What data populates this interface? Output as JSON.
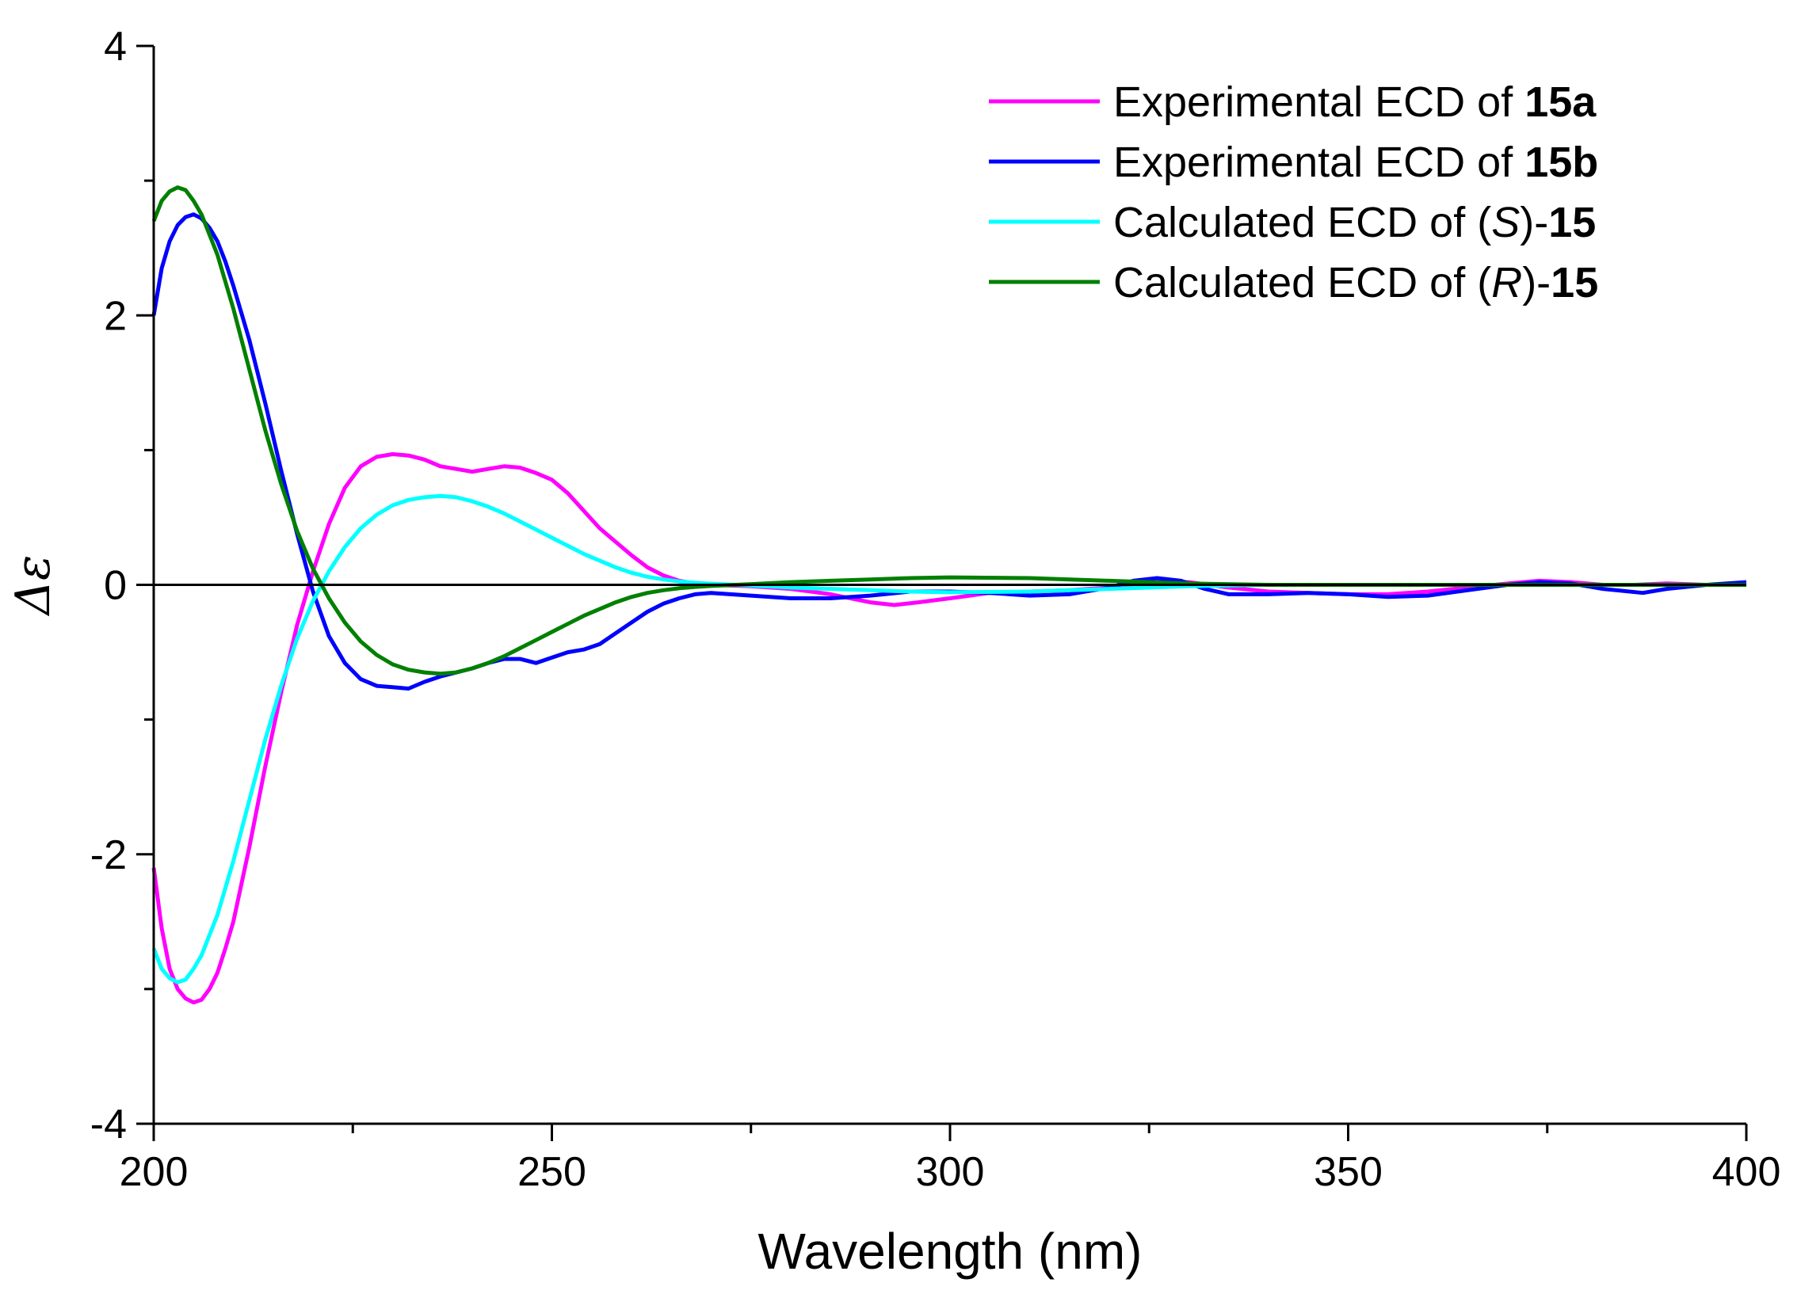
{
  "chart_data": {
    "type": "line",
    "xlabel": "Wavelength (nm)",
    "ylabel": "Δε",
    "xlim": [
      200,
      400
    ],
    "ylim": [
      -4,
      4
    ],
    "x_ticks": [
      "200",
      "250",
      "300",
      "350",
      "400"
    ],
    "y_ticks": [
      "4",
      "2",
      "0",
      "-2",
      "-4"
    ],
    "legend": [
      {
        "parts": [
          "Experimental ECD of ",
          "15a"
        ]
      },
      {
        "parts": [
          "Experimental ECD of ",
          "15b"
        ]
      },
      {
        "parts": [
          "Calculated ECD of (",
          "S",
          ")-",
          "15"
        ]
      },
      {
        "parts": [
          "Calculated ECD of (",
          "R",
          ")-",
          "15"
        ]
      }
    ],
    "series": [
      {
        "name": "Experimental ECD of 15a",
        "color": "#ff00ff",
        "x": [
          200,
          201,
          202,
          203,
          204,
          205,
          206,
          207,
          208,
          209,
          210,
          212,
          214,
          216,
          218,
          220,
          222,
          224,
          226,
          228,
          230,
          232,
          234,
          236,
          238,
          240,
          242,
          244,
          246,
          248,
          250,
          252,
          254,
          256,
          258,
          260,
          262,
          264,
          266,
          268,
          270,
          275,
          280,
          285,
          290,
          293,
          296,
          300,
          305,
          310,
          315,
          320,
          325,
          330,
          335,
          340,
          345,
          350,
          355,
          360,
          365,
          370,
          374,
          378,
          382,
          386,
          390,
          395,
          400
        ],
        "y": [
          -2.1,
          -2.55,
          -2.85,
          -3.0,
          -3.07,
          -3.1,
          -3.08,
          -3.0,
          -2.88,
          -2.7,
          -2.5,
          -1.95,
          -1.35,
          -0.8,
          -0.3,
          0.1,
          0.45,
          0.72,
          0.88,
          0.95,
          0.97,
          0.96,
          0.93,
          0.88,
          0.86,
          0.84,
          0.86,
          0.88,
          0.87,
          0.83,
          0.78,
          0.68,
          0.55,
          0.42,
          0.32,
          0.22,
          0.13,
          0.07,
          0.03,
          0.01,
          0.0,
          -0.01,
          -0.03,
          -0.07,
          -0.13,
          -0.15,
          -0.13,
          -0.1,
          -0.06,
          -0.05,
          -0.04,
          -0.02,
          0.02,
          0.02,
          -0.02,
          -0.05,
          -0.06,
          -0.07,
          -0.07,
          -0.05,
          -0.02,
          0.01,
          0.03,
          0.02,
          0.0,
          0.0,
          0.01,
          0.0,
          0.0
        ]
      },
      {
        "name": "Experimental ECD of 15b",
        "color": "#0000ff",
        "x": [
          200,
          201,
          202,
          203,
          204,
          205,
          206,
          207,
          208,
          209,
          210,
          212,
          214,
          216,
          218,
          220,
          222,
          224,
          226,
          228,
          230,
          232,
          234,
          236,
          238,
          240,
          242,
          244,
          246,
          248,
          250,
          252,
          254,
          256,
          258,
          260,
          262,
          264,
          266,
          268,
          270,
          275,
          280,
          285,
          290,
          295,
          300,
          305,
          310,
          315,
          320,
          323,
          326,
          329,
          332,
          335,
          340,
          345,
          350,
          355,
          360,
          365,
          370,
          374,
          378,
          382,
          387,
          390,
          395,
          400
        ],
        "y": [
          2.0,
          2.35,
          2.55,
          2.67,
          2.73,
          2.75,
          2.72,
          2.65,
          2.55,
          2.4,
          2.22,
          1.82,
          1.35,
          0.85,
          0.38,
          -0.05,
          -0.38,
          -0.58,
          -0.7,
          -0.75,
          -0.76,
          -0.77,
          -0.72,
          -0.68,
          -0.65,
          -0.62,
          -0.58,
          -0.55,
          -0.55,
          -0.58,
          -0.54,
          -0.5,
          -0.48,
          -0.44,
          -0.36,
          -0.28,
          -0.2,
          -0.14,
          -0.1,
          -0.07,
          -0.06,
          -0.08,
          -0.1,
          -0.1,
          -0.08,
          -0.05,
          -0.05,
          -0.06,
          -0.08,
          -0.07,
          -0.02,
          0.03,
          0.05,
          0.03,
          -0.03,
          -0.07,
          -0.07,
          -0.06,
          -0.07,
          -0.09,
          -0.08,
          -0.04,
          0.0,
          0.02,
          0.01,
          -0.03,
          -0.06,
          -0.03,
          0.0,
          0.02
        ]
      },
      {
        "name": "Calculated ECD of (S)-15",
        "color": "#00ffff",
        "x": [
          200,
          201,
          202,
          203,
          204,
          205,
          206,
          208,
          210,
          212,
          214,
          216,
          218,
          220,
          222,
          224,
          226,
          228,
          230,
          232,
          234,
          236,
          238,
          240,
          242,
          244,
          246,
          248,
          250,
          252,
          254,
          256,
          258,
          260,
          262,
          264,
          266,
          268,
          270,
          275,
          280,
          285,
          290,
          295,
          300,
          310,
          320,
          330,
          340,
          400
        ],
        "y": [
          -2.7,
          -2.85,
          -2.92,
          -2.95,
          -2.93,
          -2.85,
          -2.75,
          -2.45,
          -2.05,
          -1.6,
          -1.15,
          -0.75,
          -0.4,
          -0.12,
          0.1,
          0.28,
          0.42,
          0.52,
          0.59,
          0.63,
          0.65,
          0.66,
          0.65,
          0.62,
          0.58,
          0.53,
          0.47,
          0.41,
          0.35,
          0.29,
          0.23,
          0.18,
          0.13,
          0.09,
          0.06,
          0.04,
          0.025,
          0.015,
          0.008,
          -0.005,
          -0.02,
          -0.03,
          -0.04,
          -0.05,
          -0.055,
          -0.05,
          -0.03,
          -0.01,
          0.0,
          0.0
        ]
      },
      {
        "name": "Calculated ECD of (R)-15",
        "color": "#008000",
        "x": [
          200,
          201,
          202,
          203,
          204,
          205,
          206,
          208,
          210,
          212,
          214,
          216,
          218,
          220,
          222,
          224,
          226,
          228,
          230,
          232,
          234,
          236,
          238,
          240,
          242,
          244,
          246,
          248,
          250,
          252,
          254,
          256,
          258,
          260,
          262,
          264,
          266,
          268,
          270,
          275,
          280,
          285,
          290,
          295,
          300,
          310,
          320,
          330,
          340,
          400
        ],
        "y": [
          2.7,
          2.85,
          2.92,
          2.95,
          2.93,
          2.85,
          2.75,
          2.45,
          2.05,
          1.6,
          1.15,
          0.75,
          0.4,
          0.12,
          -0.1,
          -0.28,
          -0.42,
          -0.52,
          -0.59,
          -0.63,
          -0.65,
          -0.66,
          -0.65,
          -0.62,
          -0.58,
          -0.53,
          -0.47,
          -0.41,
          -0.35,
          -0.29,
          -0.23,
          -0.18,
          -0.13,
          -0.09,
          -0.06,
          -0.04,
          -0.025,
          -0.015,
          -0.008,
          0.005,
          0.02,
          0.03,
          0.04,
          0.05,
          0.055,
          0.05,
          0.03,
          0.01,
          0.0,
          0.0
        ]
      }
    ]
  }
}
